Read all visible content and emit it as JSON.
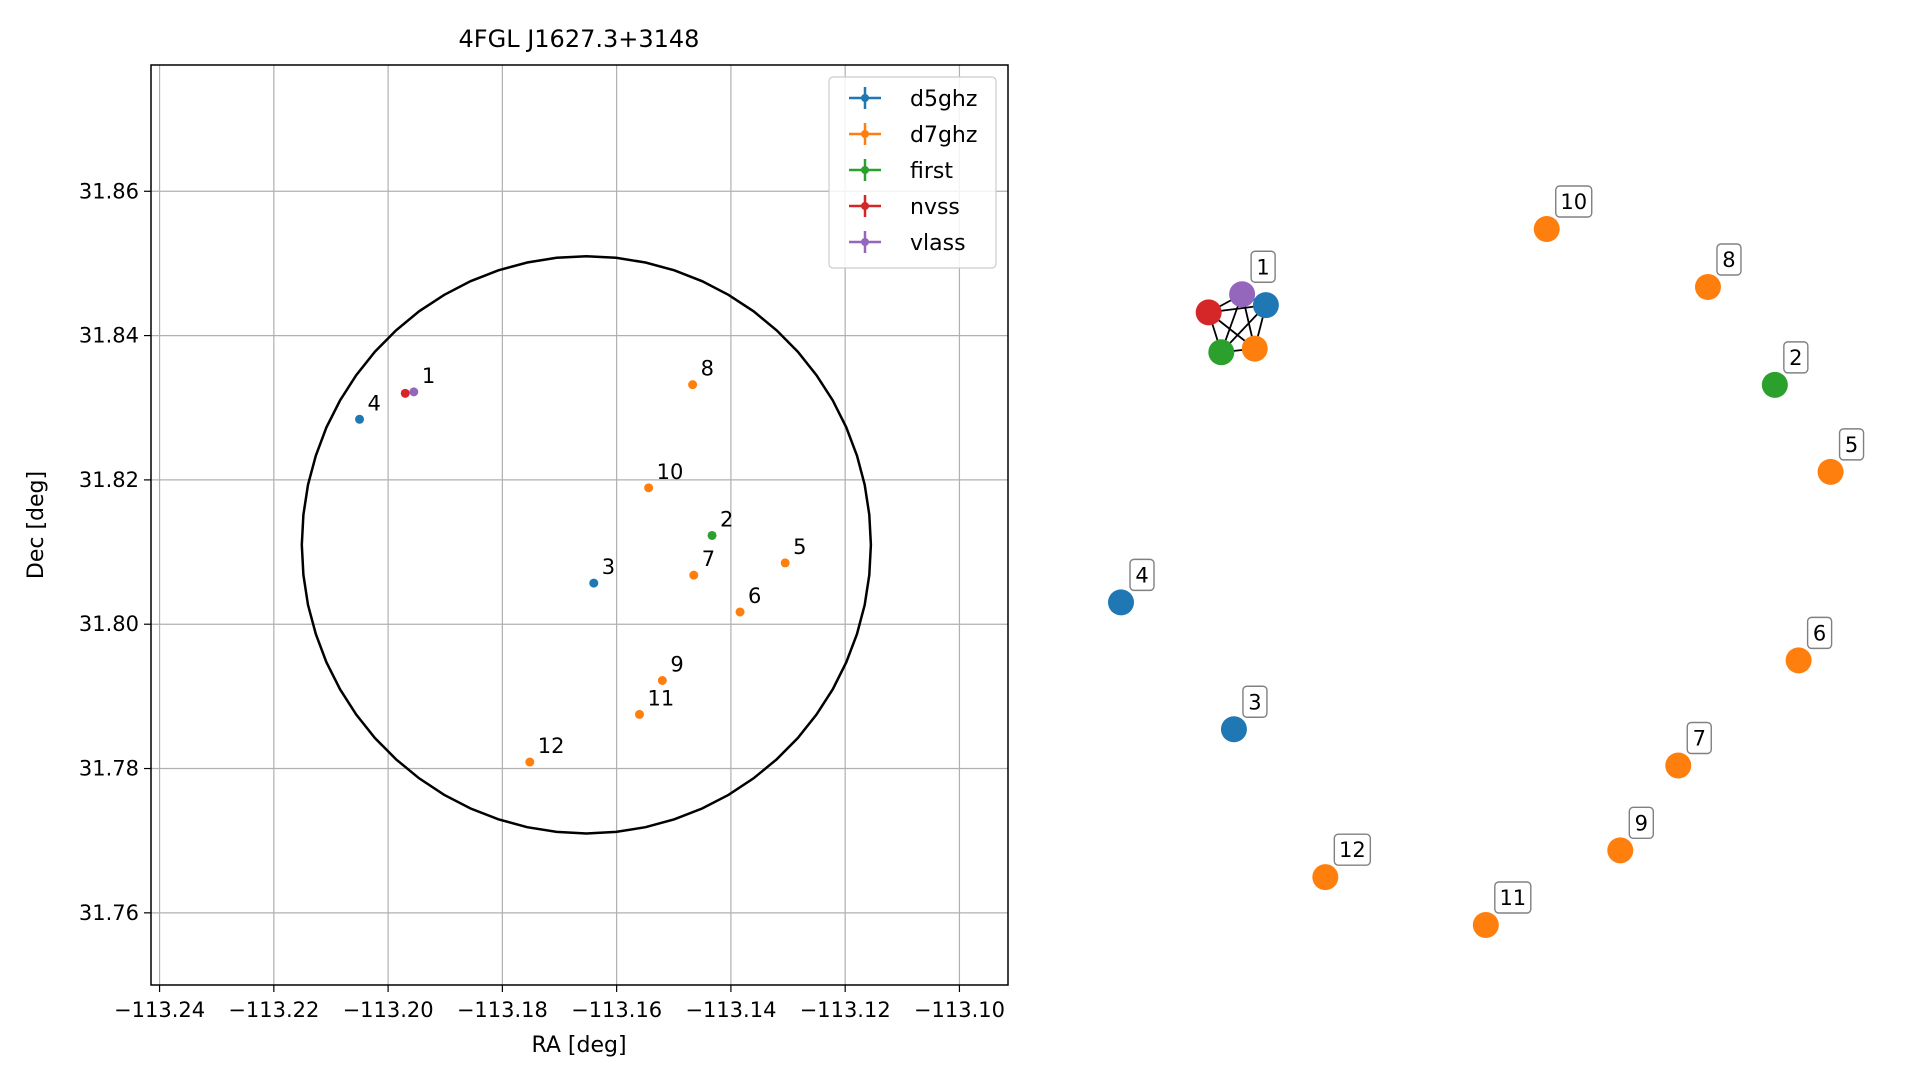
{
  "chart_data": [
    {
      "type": "scatter",
      "title": "4FGL J1627.3+3148",
      "xlabel": "RA [deg]",
      "ylabel": "Dec [deg]",
      "xlim": [
        -113.2415,
        -113.0915
      ],
      "ylim": [
        31.75,
        31.8775
      ],
      "xticks": [
        {
          "value": -113.24,
          "label": "−113.24"
        },
        {
          "value": -113.22,
          "label": "−113.22"
        },
        {
          "value": -113.2,
          "label": "−113.20"
        },
        {
          "value": -113.18,
          "label": "−113.18"
        },
        {
          "value": -113.16,
          "label": "−113.16"
        },
        {
          "value": -113.14,
          "label": "−113.14"
        },
        {
          "value": -113.12,
          "label": "−113.12"
        },
        {
          "value": -113.1,
          "label": "−113.10"
        }
      ],
      "yticks": [
        {
          "value": 31.76,
          "label": "31.76"
        },
        {
          "value": 31.78,
          "label": "31.78"
        },
        {
          "value": 31.8,
          "label": "31.80"
        },
        {
          "value": 31.82,
          "label": "31.82"
        },
        {
          "value": 31.84,
          "label": "31.84"
        },
        {
          "value": 31.86,
          "label": "31.86"
        }
      ],
      "grid": true,
      "legend": "top-right",
      "series": [
        {
          "name": "d5ghz",
          "color": "#1f77b4",
          "points": [
            {
              "label": "3",
              "x": -113.164,
              "y": 31.8057
            },
            {
              "label": "4",
              "x": -113.205,
              "y": 31.8284
            }
          ]
        },
        {
          "name": "d7ghz",
          "color": "#ff7f0e",
          "points": [
            {
              "label": "5",
              "x": -113.1305,
              "y": 31.8085
            },
            {
              "label": "6",
              "x": -113.1384,
              "y": 31.8017
            },
            {
              "label": "7",
              "x": -113.1465,
              "y": 31.8068
            },
            {
              "label": "8",
              "x": -113.1467,
              "y": 31.8332
            },
            {
              "label": "9",
              "x": -113.152,
              "y": 31.7922
            },
            {
              "label": "10",
              "x": -113.1544,
              "y": 31.8189
            },
            {
              "label": "11",
              "x": -113.156,
              "y": 31.7875
            },
            {
              "label": "12",
              "x": -113.1752,
              "y": 31.7809
            }
          ]
        },
        {
          "name": "first",
          "color": "#2ca02c",
          "points": [
            {
              "label": "2",
              "x": -113.1433,
              "y": 31.8123
            }
          ]
        },
        {
          "name": "nvss",
          "color": "#d62728",
          "points": [
            {
              "label": "",
              "x": -113.197,
              "y": 31.832
            }
          ]
        },
        {
          "name": "vlass",
          "color": "#9467bd",
          "points": [
            {
              "label": "1",
              "x": -113.1955,
              "y": 31.8322
            }
          ]
        }
      ],
      "circle": {
        "center_x": -113.1653,
        "center_y": 31.811,
        "radius_x": 0.0498,
        "radius_y": 0.04
      }
    },
    {
      "type": "scatter",
      "title": "",
      "nodes": [
        {
          "label": "",
          "series": "d5ghz",
          "color": "#1f77b4",
          "x": 0.195,
          "y": 0.855
        },
        {
          "label": "",
          "series": "d7ghz",
          "color": "#ff7f0e",
          "x": 0.18,
          "y": 0.795
        },
        {
          "label": "",
          "series": "first",
          "color": "#2ca02c",
          "x": 0.135,
          "y": 0.79
        },
        {
          "label": "",
          "series": "nvss",
          "color": "#d62728",
          "x": 0.118,
          "y": 0.845
        },
        {
          "label": "1",
          "series": "vlass",
          "color": "#9467bd",
          "x": 0.163,
          "y": 0.87
        },
        {
          "label": "2",
          "series": "first",
          "color": "#2ca02c",
          "x": 0.88,
          "y": 0.745
        },
        {
          "label": "3",
          "series": "d5ghz",
          "color": "#1f77b4",
          "x": 0.152,
          "y": 0.27
        },
        {
          "label": "4",
          "series": "d5ghz",
          "color": "#1f77b4",
          "x": 0.0,
          "y": 0.445
        },
        {
          "label": "5",
          "series": "d7ghz",
          "color": "#ff7f0e",
          "x": 0.955,
          "y": 0.625
        },
        {
          "label": "6",
          "series": "d7ghz",
          "color": "#ff7f0e",
          "x": 0.912,
          "y": 0.365
        },
        {
          "label": "7",
          "series": "d7ghz",
          "color": "#ff7f0e",
          "x": 0.75,
          "y": 0.22
        },
        {
          "label": "8",
          "series": "d7ghz",
          "color": "#ff7f0e",
          "x": 0.79,
          "y": 0.88
        },
        {
          "label": "9",
          "series": "d7ghz",
          "color": "#ff7f0e",
          "x": 0.672,
          "y": 0.103
        },
        {
          "label": "10",
          "series": "d7ghz",
          "color": "#ff7f0e",
          "x": 0.573,
          "y": 0.96
        },
        {
          "label": "11",
          "series": "d7ghz",
          "color": "#ff7f0e",
          "x": 0.491,
          "y": 0.0
        },
        {
          "label": "12",
          "series": "d7ghz",
          "color": "#ff7f0e",
          "x": 0.275,
          "y": 0.066
        }
      ],
      "edges": [
        [
          0,
          1
        ],
        [
          0,
          2
        ],
        [
          0,
          3
        ],
        [
          0,
          4
        ],
        [
          1,
          2
        ],
        [
          1,
          3
        ],
        [
          1,
          4
        ],
        [
          2,
          3
        ],
        [
          2,
          4
        ],
        [
          3,
          4
        ]
      ]
    }
  ]
}
